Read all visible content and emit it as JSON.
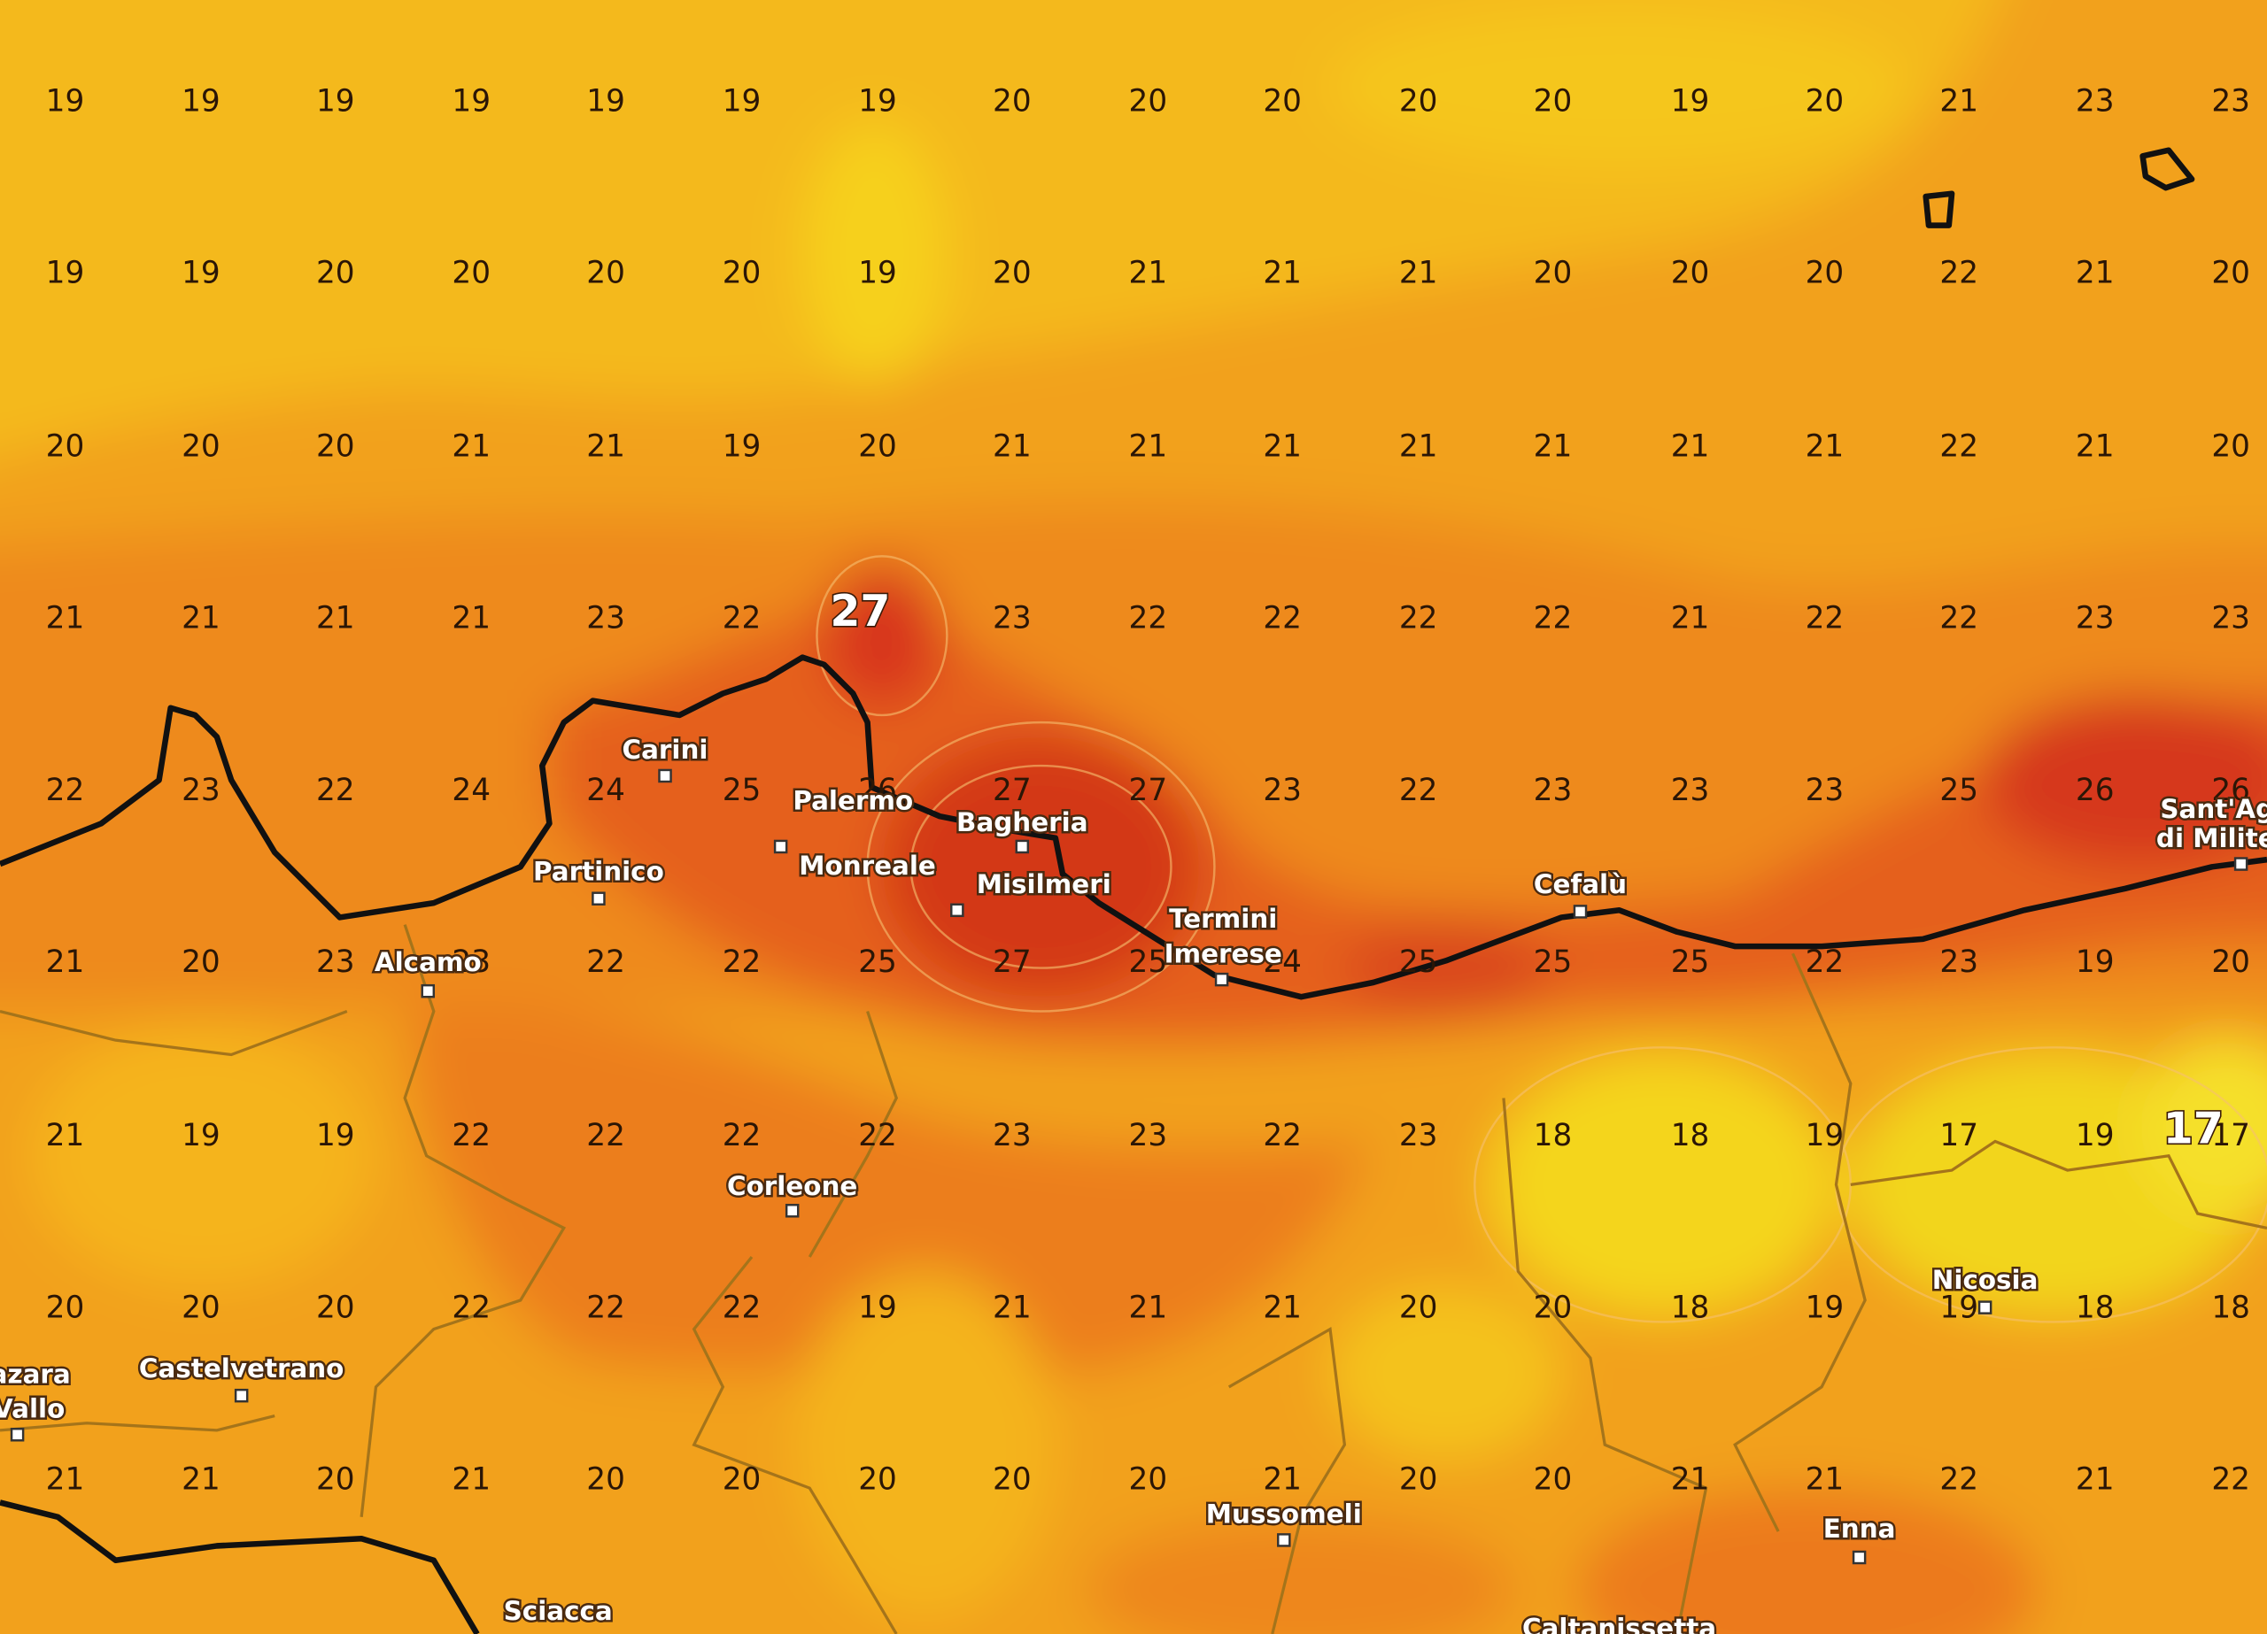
{
  "map": {
    "grid_values": [
      [
        19,
        19,
        19,
        19,
        19,
        19,
        19,
        20,
        20,
        20,
        20,
        20,
        19,
        20,
        21,
        23,
        23
      ],
      [
        19,
        19,
        20,
        20,
        20,
        20,
        19,
        20,
        21,
        21,
        21,
        20,
        20,
        20,
        22,
        21,
        20
      ],
      [
        20,
        20,
        20,
        21,
        21,
        19,
        20,
        21,
        21,
        21,
        21,
        21,
        21,
        21,
        22,
        21,
        20
      ],
      [
        21,
        21,
        21,
        21,
        23,
        22,
        27,
        23,
        22,
        22,
        22,
        22,
        21,
        22,
        22,
        23,
        23
      ],
      [
        22,
        23,
        22,
        24,
        24,
        25,
        26,
        27,
        27,
        23,
        22,
        23,
        23,
        23,
        25,
        26,
        26
      ],
      [
        21,
        20,
        23,
        23,
        22,
        22,
        25,
        27,
        25,
        24,
        25,
        25,
        25,
        22,
        23,
        19,
        20
      ],
      [
        21,
        19,
        19,
        22,
        22,
        22,
        22,
        23,
        23,
        22,
        23,
        18,
        18,
        19,
        17,
        19,
        17
      ],
      [
        20,
        20,
        20,
        22,
        22,
        22,
        19,
        21,
        21,
        21,
        20,
        20,
        18,
        19,
        19,
        18,
        18
      ],
      [
        21,
        21,
        20,
        21,
        20,
        20,
        20,
        20,
        20,
        21,
        20,
        20,
        21,
        21,
        22,
        21,
        22
      ]
    ],
    "highlights": [
      "27",
      "17"
    ],
    "places": [
      "Carini",
      "Palermo",
      "Bagheria",
      "Monreale",
      "Misilmeri",
      "Partinico",
      "Alcamo",
      "Termini",
      "Imerese",
      "Cefalù",
      "Corleone",
      "Castelvetrano",
      "Mazara",
      "Vallo",
      "Nicosia",
      "Enna",
      "Mussomeli",
      "Sciacca",
      "Caltanissetta",
      "Sant'Agata",
      "di Militello"
    ]
  }
}
